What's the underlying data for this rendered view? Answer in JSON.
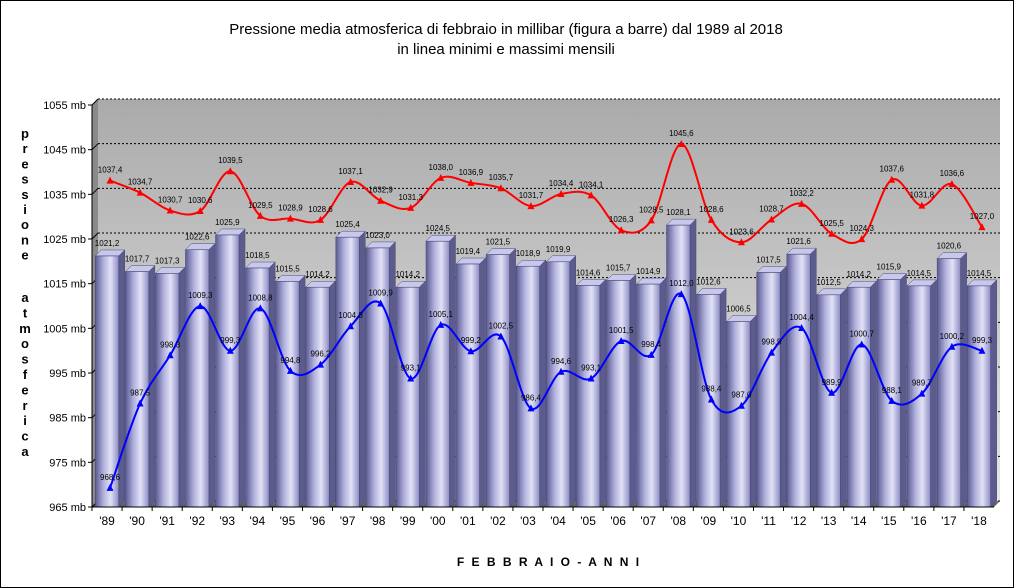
{
  "chart_data": {
    "type": "bar",
    "title_line1": "Pressione media atmosferica di febbraio in millibar (figura a barre) dal 1989 al 2018",
    "title_line2": "in linea minimi e massimi mensili",
    "ylabel_word1": "pressione",
    "ylabel_word2": "atmosferica",
    "xlabel": "F E B B R A I O  -  A N N I",
    "ylim": [
      965,
      1055
    ],
    "yticks": [
      965,
      975,
      985,
      995,
      1005,
      1015,
      1025,
      1035,
      1045,
      1055
    ],
    "ytick_labels": [
      "965 mb",
      "975 mb",
      "985 mb",
      "995 mb",
      "1005 mb",
      "1015 mb",
      "1025 mb",
      "1035 mb",
      "1045 mb",
      "1055 mb"
    ],
    "grid": true,
    "categories": [
      "'89",
      "'90",
      "'91",
      "'92",
      "'93",
      "'94",
      "'95",
      "'96",
      "'97",
      "'98",
      "'99",
      "'00",
      "'01",
      "'02",
      "'03",
      "'04",
      "'05",
      "'06",
      "'07",
      "'08",
      "'09",
      "'10",
      "'11",
      "'12",
      "'13",
      "'14",
      "'15",
      "'16",
      "'17",
      "'18"
    ],
    "series": [
      {
        "kind": "bar",
        "values": [
          1021.2,
          1017.7,
          1017.3,
          1022.6,
          1025.9,
          1018.5,
          1015.5,
          1014.2,
          1025.4,
          1023.0,
          1014.2,
          1024.5,
          1019.4,
          1021.5,
          1018.9,
          1019.9,
          1014.6,
          1015.7,
          1014.9,
          1028.1,
          1012.6,
          1006.5,
          1017.5,
          1021.6,
          1012.5,
          1014.2,
          1015.9,
          1014.5,
          1020.6,
          1014.5
        ],
        "labels": [
          "1021,2",
          "1017,7",
          "1017,3",
          "1022,6",
          "1025,9",
          "1018,5",
          "1015,5",
          "1014,2",
          "1025,4",
          "1023,0",
          "1014,2",
          "1024,5",
          "1019,4",
          "1021,5",
          "1018,9",
          "1019,9",
          "1014,6",
          "1015,7",
          "1014,9",
          "1028,1",
          "1012,6",
          "1006,5",
          "1017,5",
          "1021,6",
          "1012,5",
          "1014,2",
          "1015,9",
          "1014,5",
          "1020,6",
          "1014,5"
        ],
        "color": "#9c9cd0"
      },
      {
        "kind": "line",
        "values": [
          1037.4,
          1034.7,
          1030.7,
          1030.6,
          1039.5,
          1029.5,
          1028.9,
          1028.6,
          1037.1,
          1032.9,
          1031.3,
          1038.0,
          1036.9,
          1035.7,
          1031.7,
          1034.4,
          1034.1,
          1026.3,
          1028.5,
          1045.6,
          1028.6,
          1023.6,
          1028.7,
          1032.2,
          1025.5,
          1024.3,
          1037.6,
          1031.8,
          1036.6,
          1027.0
        ],
        "labels": [
          "1037,4",
          "1034,7",
          "1030,7",
          "1030,6",
          "1039,5",
          "1029,5",
          "1028,9",
          "1028,6",
          "1037,1",
          "1032,9",
          "1031,3",
          "1038,0",
          "1036,9",
          "1035,7",
          "1031,7",
          "1034,4",
          "1034,1",
          "1026,3",
          "1028,5",
          "1045,6",
          "1028,6",
          "1023,6",
          "1028,7",
          "1032,2",
          "1025,5",
          "1024,3",
          "1037,6",
          "1031,8",
          "1036,6",
          "1027,0"
        ],
        "color": "#ff0000"
      },
      {
        "kind": "line",
        "values": [
          968.6,
          987.5,
          998.3,
          1009.3,
          999.3,
          1008.8,
          994.8,
          996.2,
          1004.8,
          1009.9,
          993.1,
          1005.1,
          999.2,
          1002.5,
          986.4,
          994.6,
          993.1,
          1001.5,
          998.4,
          1012.0,
          988.4,
          987.0,
          998.9,
          1004.4,
          989.9,
          1000.7,
          988.1,
          989.7,
          1000.2,
          999.3
        ],
        "labels": [
          "968,6",
          "987,5",
          "998,3",
          "1009,3",
          "999,3",
          "1008,8",
          "994,8",
          "996,2",
          "1004,8",
          "1009,9",
          "993,1",
          "1005,1",
          "999,2",
          "1002,5",
          "986,4",
          "994,6",
          "993,1",
          "1001,5",
          "998,4",
          "1012,0",
          "988,4",
          "987,0",
          "998,9",
          "1004,4",
          "989,9",
          "1000,7",
          "988,1",
          "989,7",
          "1000,2",
          "999,3"
        ],
        "color": "#0000ff"
      }
    ]
  }
}
